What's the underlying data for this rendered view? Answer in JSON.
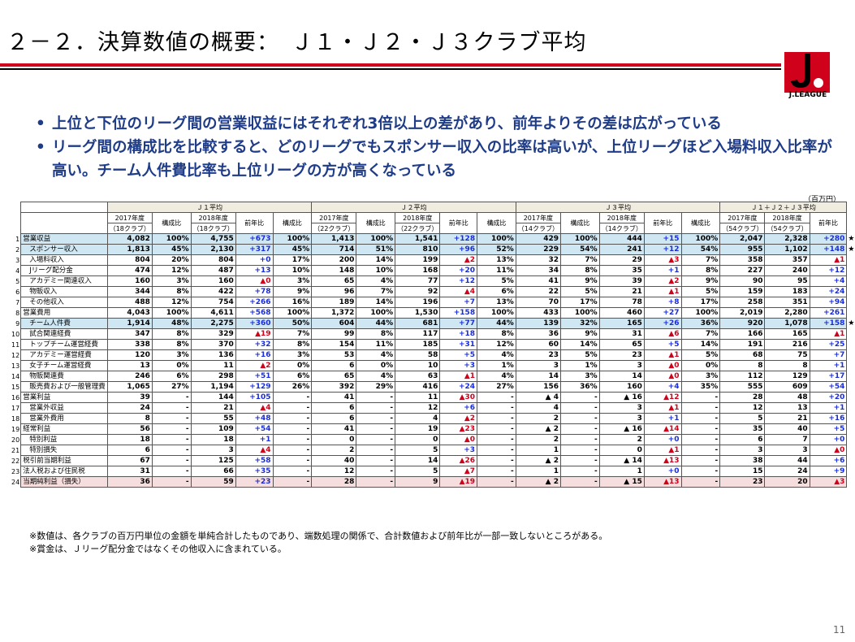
{
  "title": "２－２．決算数値の概要：　Ｊ１・Ｊ２・Ｊ３クラブ平均",
  "logo_text": "J.LEAGUE",
  "bullets": [
    "上位と下位のリーグ間の営業収益にはそれぞれ3倍以上の差があり、前年よりその差は広がっている",
    "リーグ間の構成比を比較すると、どのリーグでもスポンサー収入の比率は高いが、上位リーグほど入場料収入比率が高い。チーム人件費比率も上位リーグの方が高くなっている"
  ],
  "unit_label": "（百万円）",
  "table": {
    "groups": [
      "Ｊ１平均",
      "Ｊ２平均",
      "Ｊ３平均",
      "Ｊ１＋Ｊ２＋Ｊ３平均"
    ],
    "year_2017": "2017年度",
    "year_2018": "2018年度",
    "clubs": {
      "j1": "（18クラブ）",
      "j2": "（22クラブ）",
      "j3": "（14クラブ）",
      "all": "（54クラブ）"
    },
    "ratio_label": "構成比",
    "yoy_label": "前年比",
    "rows": [
      {
        "i": "1",
        "n": "営業収益",
        "ind": 0,
        "hl": "blue",
        "v": [
          "4,082",
          "100%",
          "4,755",
          "+673",
          "100%",
          "1,413",
          "100%",
          "1,541",
          "+128",
          "100%",
          "429",
          "100%",
          "444",
          "+15",
          "100%",
          "2,047",
          "2,328",
          "+280"
        ],
        "star": "★"
      },
      {
        "i": "2",
        "n": "スポンサー収入",
        "ind": 1,
        "hl": "blue",
        "v": [
          "1,813",
          "45%",
          "2,130",
          "+317",
          "45%",
          "714",
          "51%",
          "810",
          "+96",
          "52%",
          "229",
          "54%",
          "241",
          "+12",
          "54%",
          "955",
          "1,102",
          "+148"
        ],
        "star": "★"
      },
      {
        "i": "3",
        "n": "入場料収入",
        "ind": 1,
        "v": [
          "804",
          "20%",
          "804",
          "+0",
          "17%",
          "200",
          "14%",
          "199",
          "▲2",
          "13%",
          "32",
          "7%",
          "29",
          "▲3",
          "7%",
          "358",
          "357",
          "▲1"
        ]
      },
      {
        "i": "4",
        "n": "Jリーグ配分金",
        "ind": 1,
        "v": [
          "474",
          "12%",
          "487",
          "+13",
          "10%",
          "148",
          "10%",
          "168",
          "+20",
          "11%",
          "34",
          "8%",
          "35",
          "+1",
          "8%",
          "227",
          "240",
          "+12"
        ]
      },
      {
        "i": "5",
        "n": "アカデミー関連収入",
        "ind": 1,
        "v": [
          "160",
          "3%",
          "160",
          "▲0",
          "3%",
          "65",
          "4%",
          "77",
          "+12",
          "5%",
          "41",
          "9%",
          "39",
          "▲2",
          "9%",
          "90",
          "95",
          "+4"
        ]
      },
      {
        "i": "6",
        "n": "物販収入",
        "ind": 1,
        "v": [
          "344",
          "8%",
          "422",
          "+78",
          "9%",
          "96",
          "7%",
          "92",
          "▲4",
          "6%",
          "22",
          "5%",
          "21",
          "▲1",
          "5%",
          "159",
          "183",
          "+24"
        ]
      },
      {
        "i": "7",
        "n": "その他収入",
        "ind": 1,
        "v": [
          "488",
          "12%",
          "754",
          "+266",
          "16%",
          "189",
          "14%",
          "196",
          "+7",
          "13%",
          "70",
          "17%",
          "78",
          "+8",
          "17%",
          "258",
          "351",
          "+94"
        ]
      },
      {
        "i": "8",
        "n": "営業費用",
        "ind": 0,
        "v": [
          "4,043",
          "100%",
          "4,611",
          "+568",
          "100%",
          "1,372",
          "100%",
          "1,530",
          "+158",
          "100%",
          "433",
          "100%",
          "460",
          "+27",
          "100%",
          "2,019",
          "2,280",
          "+261"
        ]
      },
      {
        "i": "9",
        "n": "チーム人件費",
        "ind": 1,
        "hl": "blue",
        "v": [
          "1,914",
          "48%",
          "2,275",
          "+360",
          "50%",
          "604",
          "44%",
          "681",
          "+77",
          "44%",
          "139",
          "32%",
          "165",
          "+26",
          "36%",
          "920",
          "1,078",
          "+158"
        ],
        "star": "★"
      },
      {
        "i": "10",
        "n": "試合関連経費",
        "ind": 1,
        "v": [
          "347",
          "8%",
          "329",
          "▲19",
          "7%",
          "99",
          "8%",
          "117",
          "+18",
          "8%",
          "36",
          "9%",
          "31",
          "▲6",
          "7%",
          "166",
          "165",
          "▲1"
        ]
      },
      {
        "i": "11",
        "n": "トップチーム運営経費",
        "ind": 1,
        "v": [
          "338",
          "8%",
          "370",
          "+32",
          "8%",
          "154",
          "11%",
          "185",
          "+31",
          "12%",
          "60",
          "14%",
          "65",
          "+5",
          "14%",
          "191",
          "216",
          "+25"
        ]
      },
      {
        "i": "12",
        "n": "アカデミー運営経費",
        "ind": 1,
        "v": [
          "120",
          "3%",
          "136",
          "+16",
          "3%",
          "53",
          "4%",
          "58",
          "+5",
          "4%",
          "23",
          "5%",
          "23",
          "▲1",
          "5%",
          "68",
          "75",
          "+7"
        ]
      },
      {
        "i": "13",
        "n": "女子チーム運営経費",
        "ind": 1,
        "v": [
          "13",
          "0%",
          "11",
          "▲2",
          "0%",
          "6",
          "0%",
          "10",
          "+3",
          "1%",
          "3",
          "1%",
          "3",
          "▲0",
          "0%",
          "8",
          "8",
          "+1"
        ]
      },
      {
        "i": "14",
        "n": "物販関連費",
        "ind": 1,
        "v": [
          "246",
          "6%",
          "298",
          "+51",
          "6%",
          "65",
          "4%",
          "63",
          "▲1",
          "4%",
          "14",
          "3%",
          "14",
          "▲0",
          "3%",
          "112",
          "129",
          "+17"
        ]
      },
      {
        "i": "15",
        "n": "販売費および一般管理費",
        "ind": 1,
        "v": [
          "1,065",
          "27%",
          "1,194",
          "+129",
          "26%",
          "392",
          "29%",
          "416",
          "+24",
          "27%",
          "156",
          "36%",
          "160",
          "+4",
          "35%",
          "555",
          "609",
          "+54"
        ]
      },
      {
        "i": "16",
        "n": "営業利益",
        "ind": 0,
        "v": [
          "39",
          "-",
          "144",
          "+105",
          "-",
          "41",
          "-",
          "11",
          "▲30",
          "-",
          "▲ 4",
          "-",
          "▲ 16",
          "▲12",
          "-",
          "28",
          "48",
          "+20"
        ]
      },
      {
        "i": "17",
        "n": "営業外収益",
        "ind": 1,
        "v": [
          "24",
          "-",
          "21",
          "▲4",
          "-",
          "6",
          "-",
          "12",
          "+6",
          "-",
          "4",
          "-",
          "3",
          "▲1",
          "-",
          "12",
          "13",
          "+1"
        ]
      },
      {
        "i": "18",
        "n": "営業外費用",
        "ind": 1,
        "v": [
          "8",
          "-",
          "55",
          "+48",
          "-",
          "6",
          "-",
          "4",
          "▲2",
          "-",
          "2",
          "-",
          "3",
          "+1",
          "-",
          "5",
          "21",
          "+16"
        ]
      },
      {
        "i": "19",
        "n": "経常利益",
        "ind": 0,
        "v": [
          "56",
          "-",
          "109",
          "+54",
          "-",
          "41",
          "-",
          "19",
          "▲23",
          "-",
          "▲ 2",
          "-",
          "▲ 16",
          "▲14",
          "-",
          "35",
          "40",
          "+5"
        ]
      },
      {
        "i": "20",
        "n": "特別利益",
        "ind": 1,
        "v": [
          "18",
          "-",
          "18",
          "+1",
          "-",
          "0",
          "-",
          "0",
          "▲0",
          "-",
          "2",
          "-",
          "2",
          "+0",
          "-",
          "6",
          "7",
          "+0"
        ]
      },
      {
        "i": "21",
        "n": "特別損失",
        "ind": 1,
        "v": [
          "6",
          "-",
          "3",
          "▲4",
          "-",
          "2",
          "-",
          "5",
          "+3",
          "-",
          "1",
          "-",
          "0",
          "▲1",
          "-",
          "3",
          "3",
          "▲0"
        ]
      },
      {
        "i": "22",
        "n": "税引前当期利益",
        "ind": 0,
        "v": [
          "67",
          "-",
          "125",
          "+58",
          "-",
          "40",
          "-",
          "14",
          "▲26",
          "-",
          "▲ 2",
          "-",
          "▲ 14",
          "▲13",
          "-",
          "38",
          "44",
          "+6"
        ]
      },
      {
        "i": "23",
        "n": "法人税および住民税",
        "ind": 0,
        "v": [
          "31",
          "-",
          "66",
          "+35",
          "-",
          "12",
          "-",
          "5",
          "▲7",
          "-",
          "1",
          "-",
          "1",
          "+0",
          "-",
          "15",
          "24",
          "+9"
        ]
      },
      {
        "i": "24",
        "n": "当期純利益（損失）",
        "ind": 0,
        "hl": "pink",
        "v": [
          "36",
          "-",
          "59",
          "+23",
          "-",
          "28",
          "-",
          "9",
          "▲19",
          "-",
          "▲ 2",
          "-",
          "▲ 15",
          "▲13",
          "-",
          "23",
          "20",
          "▲3"
        ]
      }
    ]
  },
  "footnotes": [
    "※数値は、各クラブの百万円単位の金額を単純合計したものであり、端数処理の関係で、合計数値および前年比が一部一致しないところがある。",
    "※賞金は、Ｊリーグ配分金ではなくその他収入に含まれている。"
  ],
  "page_number": "11"
}
